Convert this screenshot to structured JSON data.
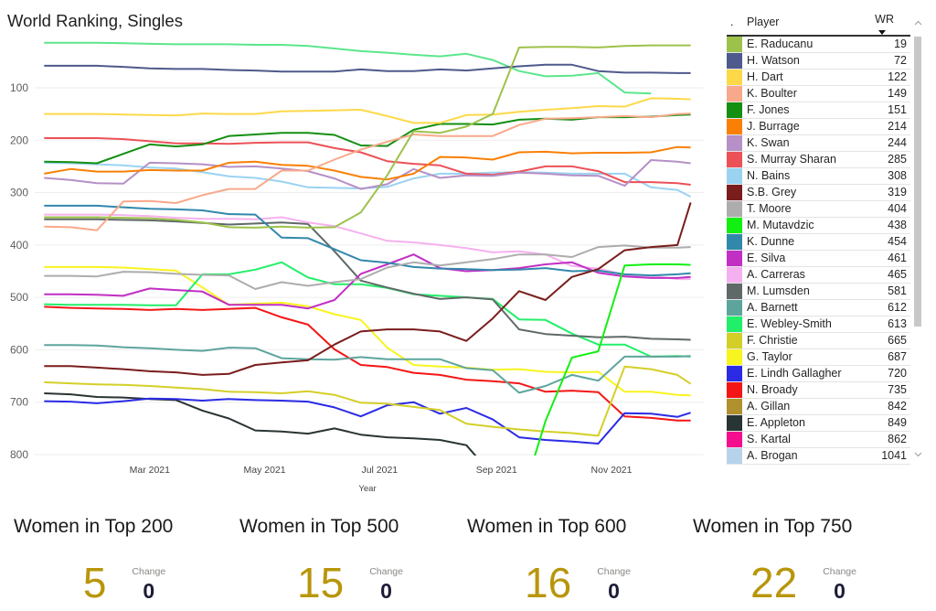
{
  "legend": {
    "header_marker": ".",
    "header_player": "Player",
    "header_wr": "WR",
    "sort_icon": "sort-descending-icon"
  },
  "kpis": [
    {
      "title": "Women in Top 200",
      "value": "5",
      "change_label": "Change",
      "change": "0"
    },
    {
      "title": "Women in Top 500",
      "value": "15",
      "change_label": "Change",
      "change": "0"
    },
    {
      "title": "Women in Top 600",
      "value": "16",
      "change_label": "Change",
      "change": "0"
    },
    {
      "title": "Women in Top 750",
      "value": "22",
      "change_label": "Change",
      "change": "0"
    }
  ],
  "colors": {
    "kpi_value": "#B8960C",
    "gridline": "#EDEDED",
    "scroll_thumb": "#C8C8C8"
  },
  "chart_data": {
    "type": "line",
    "title": "World Ranking, Singles",
    "xlabel": "Year",
    "ylabel": "",
    "y_inverted": true,
    "ylim": [
      0,
      800
    ],
    "xlim": [
      "2020-12-30",
      "2021-12-20"
    ],
    "grid": true,
    "legend_position": "right",
    "y_ticks": [
      100,
      200,
      300,
      400,
      500,
      600,
      700,
      800
    ],
    "x_ticks": [
      {
        "label": "Mar 2021",
        "date": "2021-03-01"
      },
      {
        "label": "May 2021",
        "date": "2021-05-01"
      },
      {
        "label": "Jul 2021",
        "date": "2021-07-01"
      },
      {
        "label": "Sep 2021",
        "date": "2021-09-01"
      },
      {
        "label": "Nov 2021",
        "date": "2021-11-01"
      }
    ],
    "dates": [
      "2021-01-04",
      "2021-01-18",
      "2021-02-01",
      "2021-02-15",
      "2021-03-01",
      "2021-03-15",
      "2021-03-29",
      "2021-04-12",
      "2021-04-26",
      "2021-05-10",
      "2021-05-24",
      "2021-06-07",
      "2021-06-21",
      "2021-07-05",
      "2021-07-19",
      "2021-08-02",
      "2021-08-16",
      "2021-08-30",
      "2021-09-13",
      "2021-09-27",
      "2021-10-11",
      "2021-10-25",
      "2021-11-08",
      "2021-11-22",
      "2021-12-06",
      "2021-12-13"
    ],
    "series": [
      {
        "name": "E. Raducanu",
        "wr": 19,
        "color": "#9DC24B",
        "values": [
          347,
          347,
          347,
          348,
          349,
          352,
          357,
          366,
          367,
          365,
          367,
          366,
          338,
          267,
          183,
          186,
          174,
          150,
          23,
          22,
          22,
          23,
          20,
          19,
          19,
          19
        ]
      },
      {
        "name": "H. Watson",
        "wr": 72,
        "color": "#4E5A8C",
        "values": [
          58,
          58,
          58,
          60,
          63,
          64,
          64,
          66,
          67,
          69,
          69,
          69,
          65,
          68,
          68,
          65,
          67,
          63,
          59,
          56,
          56,
          68,
          71,
          71,
          72,
          72
        ]
      },
      {
        "name": "H. Dart",
        "wr": 122,
        "color": "#FDD94A",
        "values": [
          150,
          150,
          150,
          151,
          152,
          153,
          149,
          150,
          150,
          145,
          144,
          143,
          142,
          154,
          167,
          167,
          152,
          151,
          146,
          142,
          139,
          135,
          136,
          120,
          121,
          122
        ]
      },
      {
        "name": "K. Boulter",
        "wr": 149,
        "color": "#F9A98B",
        "values": [
          365,
          366,
          372,
          317,
          316,
          320,
          305,
          293,
          293,
          258,
          258,
          237,
          218,
          203,
          189,
          192,
          192,
          192,
          171,
          159,
          158,
          156,
          154,
          156,
          150,
          149
        ]
      },
      {
        "name": "F. Jones",
        "wr": 151,
        "color": "#138F11",
        "values": [
          241,
          242,
          244,
          226,
          208,
          212,
          208,
          192,
          189,
          186,
          186,
          190,
          210,
          211,
          180,
          169,
          169,
          170,
          161,
          159,
          161,
          156,
          156,
          155,
          152,
          151
        ]
      },
      {
        "name": "J. Burrage",
        "wr": 214,
        "color": "#F98005",
        "values": [
          264,
          255,
          260,
          260,
          257,
          258,
          258,
          243,
          241,
          247,
          249,
          258,
          270,
          275,
          264,
          232,
          233,
          237,
          223,
          222,
          225,
          224,
          224,
          223,
          213,
          214
        ]
      },
      {
        "name": "K. Swan",
        "wr": 244,
        "color": "#B690C6",
        "values": [
          272,
          276,
          282,
          283,
          243,
          244,
          246,
          251,
          250,
          254,
          259,
          273,
          293,
          284,
          255,
          272,
          267,
          268,
          262,
          264,
          267,
          268,
          287,
          238,
          241,
          244
        ]
      },
      {
        "name": "S. Murray Sharan",
        "wr": 285,
        "color": "#EC5157",
        "values": [
          196,
          196,
          196,
          198,
          202,
          206,
          206,
          207,
          205,
          204,
          204,
          215,
          223,
          240,
          245,
          248,
          264,
          266,
          260,
          250,
          250,
          259,
          280,
          280,
          282,
          285
        ]
      },
      {
        "name": "N. Bains",
        "wr": 308,
        "color": "#9AD3F2",
        "values": [
          243,
          244,
          246,
          248,
          252,
          254,
          261,
          269,
          272,
          279,
          290,
          291,
          292,
          289,
          273,
          264,
          264,
          262,
          261,
          262,
          264,
          264,
          264,
          290,
          295,
          308
        ]
      },
      {
        "name": "S.B. Grey",
        "wr": 319,
        "color": "#7A1D1D",
        "values": [
          631,
          631,
          634,
          637,
          641,
          643,
          648,
          646,
          629,
          624,
          620,
          590,
          565,
          561,
          561,
          565,
          583,
          540,
          488,
          505,
          461,
          446,
          410,
          404,
          400,
          319
        ]
      },
      {
        "name": "T. Moore",
        "wr": 404,
        "color": "#ADADAD",
        "values": [
          459,
          459,
          460,
          451,
          452,
          455,
          457,
          458,
          484,
          471,
          478,
          471,
          465,
          443,
          433,
          439,
          433,
          427,
          418,
          418,
          423,
          404,
          401,
          405,
          405,
          404
        ]
      },
      {
        "name": "M. Mutavdzic",
        "wr": 438,
        "color": "#12F012",
        "values": [
          null,
          null,
          null,
          null,
          null,
          null,
          null,
          null,
          null,
          null,
          null,
          null,
          null,
          null,
          null,
          null,
          null,
          null,
          900,
          736,
          615,
          603,
          439,
          437,
          437,
          438
        ]
      },
      {
        "name": "K. Dunne",
        "wr": 454,
        "color": "#3288AB",
        "values": [
          325,
          325,
          325,
          328,
          331,
          332,
          334,
          341,
          342,
          386,
          387,
          408,
          429,
          434,
          442,
          445,
          446,
          448,
          447,
          444,
          450,
          449,
          456,
          458,
          456,
          454
        ]
      },
      {
        "name": "E. Silva",
        "wr": 461,
        "color": "#C12FC4",
        "values": [
          494,
          494,
          495,
          497,
          483,
          486,
          489,
          514,
          514,
          514,
          521,
          505,
          455,
          437,
          418,
          444,
          450,
          448,
          444,
          437,
          433,
          453,
          460,
          463,
          463,
          461
        ]
      },
      {
        "name": "A. Carreras",
        "wr": 465,
        "color": "#F5B1EF",
        "values": [
          342,
          342,
          342,
          343,
          345,
          348,
          350,
          350,
          351,
          347,
          357,
          364,
          378,
          392,
          395,
          400,
          406,
          414,
          412,
          418,
          440,
          445,
          457,
          459,
          465,
          465
        ]
      },
      {
        "name": "M. Lumsden",
        "wr": 581,
        "color": "#5F6968",
        "values": [
          351,
          351,
          351,
          352,
          353,
          355,
          358,
          361,
          359,
          357,
          360,
          412,
          468,
          481,
          493,
          503,
          500,
          504,
          561,
          570,
          573,
          576,
          575,
          579,
          580,
          581
        ]
      },
      {
        "name": "A. Barnett",
        "wr": 612,
        "color": "#5DA59C",
        "values": [
          591,
          591,
          592,
          595,
          597,
          600,
          602,
          596,
          597,
          616,
          618,
          619,
          614,
          618,
          618,
          618,
          635,
          639,
          682,
          669,
          648,
          659,
          613,
          613,
          613,
          612
        ]
      },
      {
        "name": "E. Webley-Smith",
        "wr": 613,
        "color": "#22EF69",
        "values": [
          513,
          514,
          514,
          514,
          515,
          515,
          456,
          456,
          447,
          433,
          462,
          475,
          475,
          482,
          494,
          497,
          500,
          503,
          542,
          543,
          569,
          590,
          590,
          613,
          612,
          613
        ]
      },
      {
        "name": "F. Christie",
        "wr": 665,
        "color": "#D4CF28",
        "values": [
          662,
          664,
          666,
          667,
          669,
          672,
          675,
          680,
          681,
          683,
          679,
          686,
          701,
          703,
          709,
          715,
          741,
          747,
          752,
          756,
          759,
          764,
          632,
          637,
          648,
          665
        ]
      },
      {
        "name": "G. Taylor",
        "wr": 687,
        "color": "#F8F41F",
        "values": [
          442,
          442,
          442,
          443,
          446,
          449,
          481,
          514,
          512,
          510,
          517,
          532,
          543,
          596,
          629,
          632,
          634,
          638,
          637,
          642,
          643,
          642,
          680,
          680,
          686,
          687
        ]
      },
      {
        "name": "E. Lindh Gallagher",
        "wr": 720,
        "color": "#2B2BE6",
        "values": [
          698,
          699,
          702,
          698,
          693,
          694,
          697,
          694,
          696,
          697,
          699,
          710,
          727,
          706,
          700,
          722,
          711,
          733,
          767,
          772,
          775,
          779,
          721,
          722,
          728,
          720
        ]
      },
      {
        "name": "N. Broady",
        "wr": 735,
        "color": "#F41616",
        "values": [
          518,
          520,
          521,
          522,
          524,
          522,
          524,
          522,
          520,
          538,
          552,
          599,
          629,
          633,
          644,
          648,
          657,
          660,
          664,
          680,
          678,
          681,
          727,
          730,
          735,
          735
        ]
      },
      {
        "name": "A. Gillan",
        "wr": 842,
        "color": "#B0912D",
        "values": null
      },
      {
        "name": "E. Appleton",
        "wr": 849,
        "color": "#293434",
        "values": [
          683,
          685,
          690,
          691,
          694,
          696,
          716,
          731,
          754,
          756,
          760,
          750,
          762,
          767,
          769,
          772,
          782,
          840,
          845,
          848,
          848,
          849,
          849,
          849,
          849,
          849
        ]
      },
      {
        "name": "S. Kartal",
        "wr": 862,
        "color": "#F40D8D",
        "values": null
      },
      {
        "name": "A. Brogan",
        "wr": 1041,
        "color": "#B7D3EB",
        "values": null
      },
      {
        "color": "#5CE68C",
        "values": [
          14,
          14,
          14,
          15,
          16,
          17,
          17,
          17,
          18,
          18,
          20,
          25,
          30,
          33,
          37,
          40,
          35,
          47,
          68,
          78,
          77,
          72,
          109,
          111,
          null,
          null
        ]
      }
    ]
  }
}
